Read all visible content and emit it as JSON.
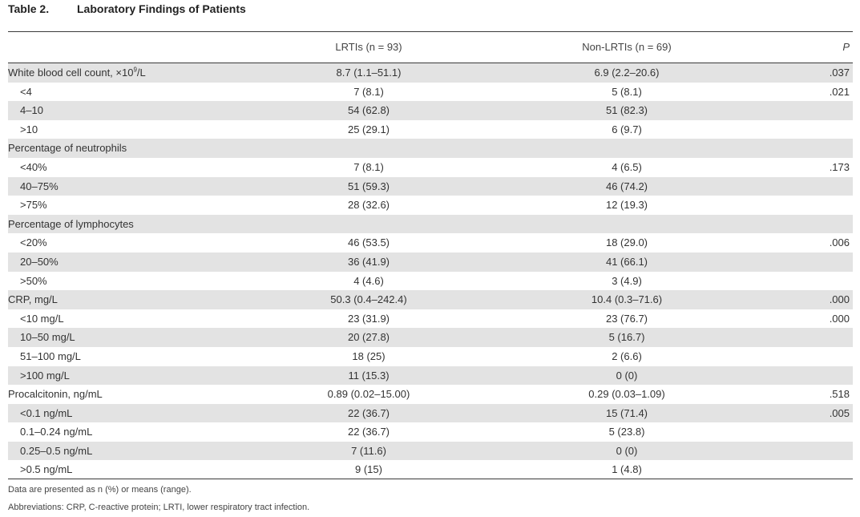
{
  "table": {
    "number": "Table 2.",
    "title": "Laboratory Findings of Patients",
    "headers": {
      "col1": "LRTIs (n = 93)",
      "col2": "Non-LRTIs (n = 69)",
      "p": "P"
    },
    "wbc_row": {
      "label_prefix": "White blood cell count, ×10",
      "label_sup": "9",
      "label_suffix": "/L",
      "v1": "8.7 (1.1–51.1)",
      "v2": "6.9 (2.2–20.6)",
      "p": ".037"
    },
    "rows": [
      {
        "label": "<4",
        "v1": "7 (8.1)",
        "v2": "5 (8.1)",
        "p": ".021"
      },
      {
        "label": "4–10",
        "v1": "54 (62.8)",
        "v2": "51 (82.3)",
        "p": ""
      },
      {
        "label": ">10",
        "v1": "25 (29.1)",
        "v2": "6 (9.7)",
        "p": ""
      },
      {
        "label": "Percentage of neutrophils",
        "v1": "",
        "v2": "",
        "p": ""
      },
      {
        "label": "<40%",
        "v1": "7 (8.1)",
        "v2": "4 (6.5)",
        "p": ".173"
      },
      {
        "label": "40–75%",
        "v1": "51 (59.3)",
        "v2": "46 (74.2)",
        "p": ""
      },
      {
        "label": ">75%",
        "v1": "28 (32.6)",
        "v2": "12 (19.3)",
        "p": ""
      },
      {
        "label": "Percentage of lymphocytes",
        "v1": "",
        "v2": "",
        "p": ""
      },
      {
        "label": "<20%",
        "v1": "46 (53.5)",
        "v2": "18 (29.0)",
        "p": ".006"
      },
      {
        "label": "20–50%",
        "v1": "36 (41.9)",
        "v2": "41 (66.1)",
        "p": ""
      },
      {
        "label": ">50%",
        "v1": "4 (4.6)",
        "v2": "3 (4.9)",
        "p": ""
      },
      {
        "label": "CRP, mg/L",
        "v1": "50.3 (0.4–242.4)",
        "v2": "10.4 (0.3–71.6)",
        "p": ".000"
      },
      {
        "label": "<10 mg/L",
        "v1": "23 (31.9)",
        "v2": "23 (76.7)",
        "p": ".000"
      },
      {
        "label": "10–50 mg/L",
        "v1": "20 (27.8)",
        "v2": "5 (16.7)",
        "p": ""
      },
      {
        "label": "51–100 mg/L",
        "v1": "18 (25)",
        "v2": "2 (6.6)",
        "p": ""
      },
      {
        "label": ">100 mg/L",
        "v1": "11 (15.3)",
        "v2": "0 (0)",
        "p": ""
      },
      {
        "label": "Procalcitonin, ng/mL",
        "v1": "0.89 (0.02–15.00)",
        "v2": "0.29 (0.03–1.09)",
        "p": ".518"
      },
      {
        "label": "<0.1 ng/mL",
        "v1": "22 (36.7)",
        "v2": "15 (71.4)",
        "p": ".005"
      },
      {
        "label": "0.1–0.24 ng/mL",
        "v1": "22 (36.7)",
        "v2": "5 (23.8)",
        "p": ""
      },
      {
        "label": "0.25–0.5 ng/mL",
        "v1": "7 (11.6)",
        "v2": "0 (0)",
        "p": ""
      },
      {
        "label": ">0.5 ng/mL",
        "v1": "9 (15)",
        "v2": "1 (4.8)",
        "p": ""
      }
    ]
  },
  "footnotes": {
    "data_note": "Data are presented as n (%) or means (range).",
    "abbreviations": "Abbreviations: CRP, C-reactive protein; LRTI, lower respiratory tract infection."
  }
}
